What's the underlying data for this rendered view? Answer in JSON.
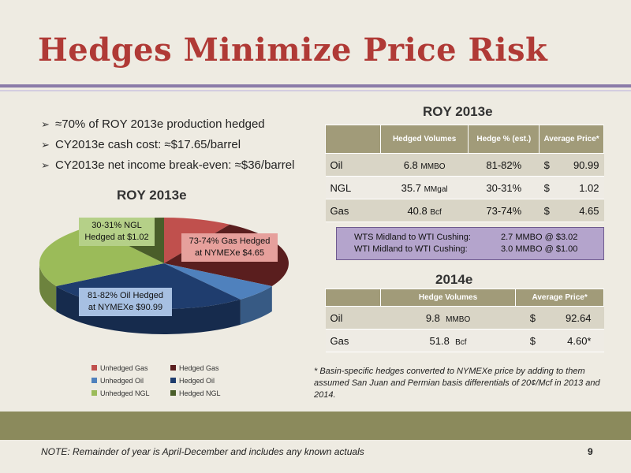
{
  "title": "Hedges Minimize Price Risk",
  "bullets": [
    "≈70% of ROY 2013e production hedged",
    "CY2013e cash cost: ≈$17.65/barrel",
    "CY2013e net income break-even: ≈$36/barrel"
  ],
  "left_chart_title": "ROY 2013e",
  "right_section_title": "ROY 2013e",
  "table_2013": {
    "headers": [
      "",
      "Hedged Volumes",
      "Hedge % (est.)",
      "Average Price*"
    ],
    "rows": [
      {
        "label": "Oil",
        "volume": "6.8",
        "unit": "MMBO",
        "pct": "81-82%",
        "cur": "$",
        "price": "90.99"
      },
      {
        "label": "NGL",
        "volume": "35.7",
        "unit": "MMgal",
        "pct": "30-31%",
        "cur": "$",
        "price": "1.02"
      },
      {
        "label": "Gas",
        "volume": "40.8",
        "unit": "Bcf",
        "pct": "73-74%",
        "cur": "$",
        "price": "4.65"
      }
    ]
  },
  "basis_box": [
    {
      "label": "WTS Midland to WTI Cushing:",
      "value": "2.7 MMBO @ $3.02"
    },
    {
      "label": "WTI Midland to WTI Cushing:",
      "value": "3.0 MMBO @ $1.00"
    }
  ],
  "section_2014": "2014e",
  "table_2014": {
    "headers": [
      "",
      "Hedge Volumes",
      "Average Price*"
    ],
    "rows": [
      {
        "label": "Oil",
        "volume": "9.8",
        "unit": "MMBO",
        "cur": "$",
        "price": "92.64"
      },
      {
        "label": "Gas",
        "volume": "51.8",
        "unit": "Bcf",
        "cur": "$",
        "price": "4.60*"
      }
    ]
  },
  "footnote": "* Basin-specific hedges converted to NYMEXe price by adding to them assumed San Juan and Permian basis differentials of 20¢/Mcf in 2013 and 2014.",
  "note": "NOTE: Remainder of year is April-December and includes any known actuals",
  "page_number": "9",
  "chart_data": {
    "type": "pie",
    "title": "ROY 2013e",
    "slices": [
      {
        "name": "Unhedged Gas",
        "value": 26.5,
        "color": "#c0504d"
      },
      {
        "name": "Hedged Gas",
        "value": 73.5,
        "color": "#5a1e1e"
      },
      {
        "name": "Unhedged Oil",
        "value": 18.5,
        "color": "#4f81bd"
      },
      {
        "name": "Hedged Oil",
        "value": 81.5,
        "color": "#1f3d6e"
      },
      {
        "name": "Unhedged NGL",
        "value": 69.5,
        "color": "#9bbb59"
      },
      {
        "name": "Hedged NGL",
        "value": 30.5,
        "color": "#4a5e2a"
      }
    ],
    "callouts": [
      "30-31% NGL Hedged at $1.02",
      "73-74% Gas Hedged at NYMEXe $4.65",
      "81-82% Oil Hedged at NYMEXe $90.99"
    ],
    "legend": [
      "Unhedged Gas",
      "Hedged Gas",
      "Unhedged Oil",
      "Hedged Oil",
      "Unhedged NGL",
      "Hedged NGL"
    ],
    "legend_colors": [
      "#c0504d",
      "#5a1e1e",
      "#4f81bd",
      "#1f3d6e",
      "#9bbb59",
      "#4a5e2a"
    ],
    "legend_placement": "bottom"
  }
}
